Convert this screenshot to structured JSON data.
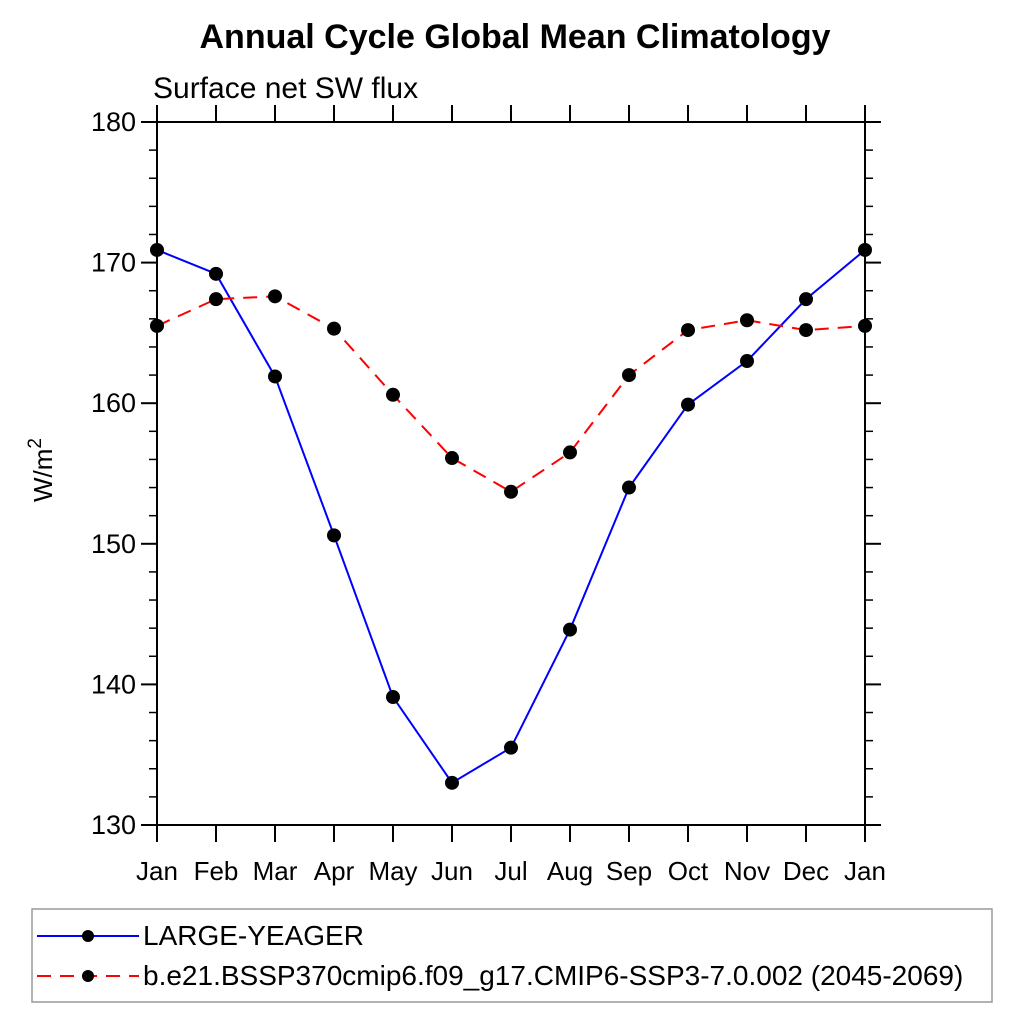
{
  "page": {
    "background": "#ffffff"
  },
  "chart_data": {
    "type": "line",
    "title": "Annual Cycle Global Mean Climatology",
    "subtitle": "Surface net SW flux",
    "ylabel": "W/m²",
    "xlabel": "",
    "x_categories": [
      "Jan",
      "Feb",
      "Mar",
      "Apr",
      "May",
      "Jun",
      "Jul",
      "Aug",
      "Sep",
      "Oct",
      "Nov",
      "Dec",
      "Jan"
    ],
    "ylim": [
      130,
      180
    ],
    "ytick_major": [
      130,
      140,
      150,
      160,
      170,
      180
    ],
    "ytick_minor_step": 2,
    "grid": false,
    "legend_position": "bottom-left",
    "axis_color": "#000000",
    "legend_border_color": "#999999",
    "series": [
      {
        "name": "LARGE-YEAGER",
        "color": "#0000ff",
        "line_style": "solid",
        "marker": "filled-circle",
        "marker_color": "#000000",
        "values": [
          170.9,
          169.2,
          161.9,
          150.6,
          139.1,
          133.0,
          135.5,
          143.9,
          154.0,
          159.9,
          163.0,
          167.4,
          170.9
        ]
      },
      {
        "name": "b.e21.BSSP370cmip6.f09_g17.CMIP6-SSP3-7.0.002 (2045-2069)",
        "color": "#ff0000",
        "line_style": "dashed",
        "marker": "filled-circle",
        "marker_color": "#000000",
        "values": [
          165.5,
          167.4,
          167.6,
          165.3,
          160.6,
          156.1,
          153.7,
          156.5,
          162.0,
          165.2,
          165.9,
          165.2,
          165.5
        ]
      }
    ]
  }
}
